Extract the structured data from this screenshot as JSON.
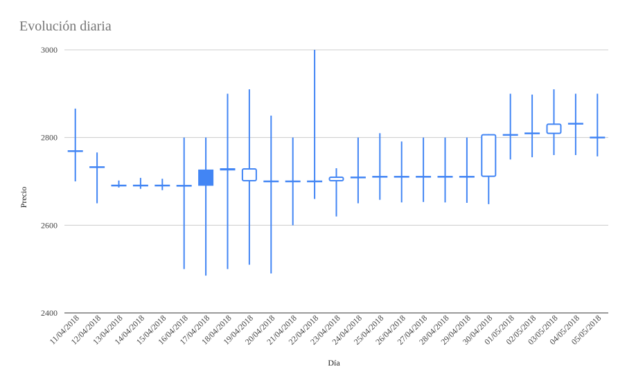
{
  "chart_data": {
    "type": "candlestick",
    "title": "Evolución diaria",
    "xlabel": "Día",
    "ylabel": "Precio",
    "ylim": [
      2400,
      3000
    ],
    "yticks": [
      2400,
      2600,
      2800,
      3000
    ],
    "grid": true,
    "colors": {
      "candle": "#4285f4",
      "grid": "#cccccc",
      "baseline": "#333333"
    },
    "categories": [
      "11/04/2018",
      "12/04/2018",
      "13/04/2018",
      "14/04/2018",
      "15/04/2018",
      "16/04/2018",
      "17/04/2018",
      "18/04/2018",
      "19/04/2018",
      "20/04/2018",
      "21/04/2018",
      "22/04/2018",
      "23/04/2018",
      "24/04/2018",
      "25/04/2018",
      "26/04/2018",
      "27/04/2018",
      "28/04/2018",
      "29/04/2018",
      "30/04/2018",
      "01/05/2018",
      "02/05/2018",
      "03/05/2018",
      "04/05/2018",
      "05/05/2018"
    ],
    "series": [
      {
        "low": [
          2700,
          2650,
          2686,
          2683,
          2680,
          2500,
          2485,
          2500,
          2510,
          2490,
          2600,
          2660,
          2620,
          2650,
          2658,
          2652,
          2653,
          2652,
          2651,
          2648,
          2750,
          2755,
          2760,
          2760,
          2757
        ],
        "open": [
          2768,
          2732,
          2690,
          2690,
          2690,
          2690,
          2690,
          2730,
          2700,
          2700,
          2700,
          2700,
          2700,
          2710,
          2711,
          2711,
          2711,
          2711,
          2711,
          2710,
          2807,
          2808,
          2808,
          2831,
          2800
        ],
        "close": [
          2770,
          2733,
          2691,
          2691,
          2691,
          2690,
          2727,
          2725,
          2730,
          2700,
          2700,
          2700,
          2711,
          2708,
          2710,
          2710,
          2710,
          2710,
          2710,
          2808,
          2805,
          2811,
          2832,
          2832,
          2800
        ],
        "high": [
          2866,
          2766,
          2702,
          2708,
          2706,
          2800,
          2800,
          2900,
          2910,
          2850,
          2800,
          3000,
          2730,
          2800,
          2810,
          2791,
          2800,
          2800,
          2800,
          2808,
          2900,
          2898,
          2910,
          2900,
          2900
        ]
      }
    ]
  }
}
